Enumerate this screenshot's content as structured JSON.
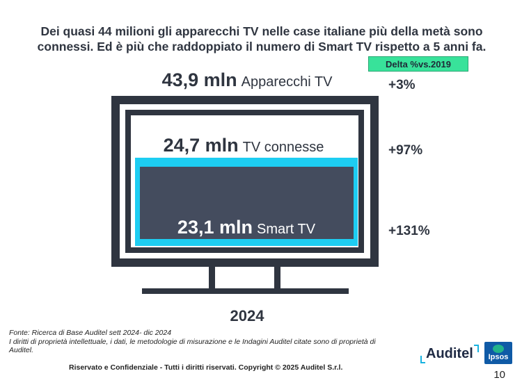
{
  "headline": {
    "line1": "Dei quasi 44 milioni gli apparecchi TV nelle case italiane più della metà sono",
    "line2": "connessi. Ed è più che raddoppiato il numero di Smart TV rispetto a 5 anni fa."
  },
  "delta_header": "Delta %vs.2019",
  "tv_sets": {
    "value": "43,9 mln",
    "label": "Apparecchi TV",
    "delta": "+3%"
  },
  "connected_tv": {
    "value": "24,7 mln",
    "label": "TV connesse",
    "delta": "+97%"
  },
  "smart_tv": {
    "value": "23,1 mln",
    "label": "Smart TV",
    "delta": "+131%"
  },
  "year": "2024",
  "source": {
    "line1": "Fonte: Ricerca di Base Auditel sett 2024- dic 2024",
    "line2": "I diritti di proprietà intellettuale, i dati, le metodologie di misurazione e le Indagini Auditel citate sono di proprietà di Auditel."
  },
  "footer": "Riservato e Confidenziale - Tutti i diritti riservati. Copyright © 2025 Auditel S.r.l.",
  "logos": {
    "auditel": "Auditel",
    "ipsos": "Ipsos"
  },
  "page_number": "10",
  "colors": {
    "dark": "#2f3540",
    "cyan": "#1dcdf2",
    "slate": "#444c5e",
    "green_badge": "#38e29a"
  }
}
